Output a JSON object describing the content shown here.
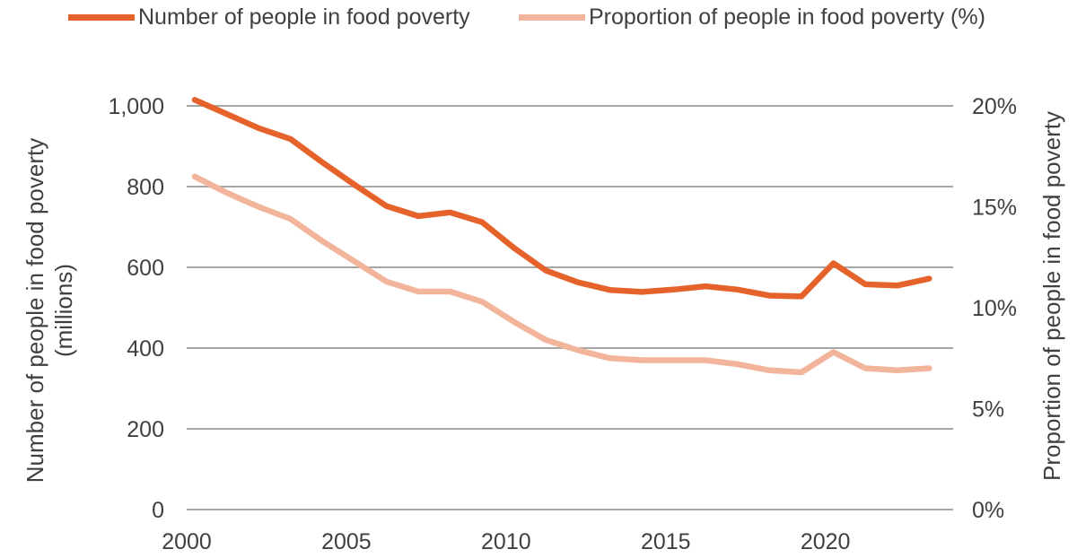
{
  "chart_data": {
    "type": "line",
    "title": "",
    "xlabel": "",
    "ylabel": "Number of people in food poverty (millions)",
    "ylabel_lines": [
      "Number of people in food poverty",
      "(millions)"
    ],
    "y2label": "Proportion of people in food poverty",
    "xlim": [
      2000,
      2024
    ],
    "ylim": [
      0,
      1000
    ],
    "y2lim": [
      0,
      20
    ],
    "x_ticks": [
      "2000",
      "2005",
      "2010",
      "2015",
      "2020"
    ],
    "y_ticks": [
      "0",
      "200",
      "400",
      "600",
      "800",
      "1,000"
    ],
    "y2_ticks": [
      "0%",
      "5%",
      "10%",
      "15%",
      "20%"
    ],
    "grid": true,
    "legend_position": "top",
    "x": [
      2000.25,
      2001.25,
      2002.25,
      2003.25,
      2004.25,
      2005.25,
      2006.25,
      2007.25,
      2008.25,
      2009.25,
      2010.25,
      2011.25,
      2012.25,
      2013.25,
      2014.25,
      2015.25,
      2016.25,
      2017.25,
      2018.25,
      2019.25,
      2020.25,
      2021.25,
      2022.25,
      2023.25
    ],
    "series": [
      {
        "name": "Number of people in food poverty",
        "axis": "left",
        "color": "#e5622a",
        "values": [
          1015,
          980,
          945,
          918,
          860,
          805,
          752,
          727,
          736,
          712,
          648,
          592,
          563,
          544,
          539,
          545,
          553,
          545,
          530,
          528,
          610,
          558,
          555,
          572
        ]
      },
      {
        "name": "Proportion of people in food poverty (%)",
        "axis": "right",
        "color": "#f2b49a",
        "values": [
          16.5,
          15.7,
          15.0,
          14.4,
          13.3,
          12.3,
          11.3,
          10.8,
          10.8,
          10.3,
          9.3,
          8.4,
          7.9,
          7.5,
          7.4,
          7.4,
          7.4,
          7.2,
          6.9,
          6.8,
          7.8,
          7.0,
          6.9,
          7.0
        ]
      }
    ]
  }
}
